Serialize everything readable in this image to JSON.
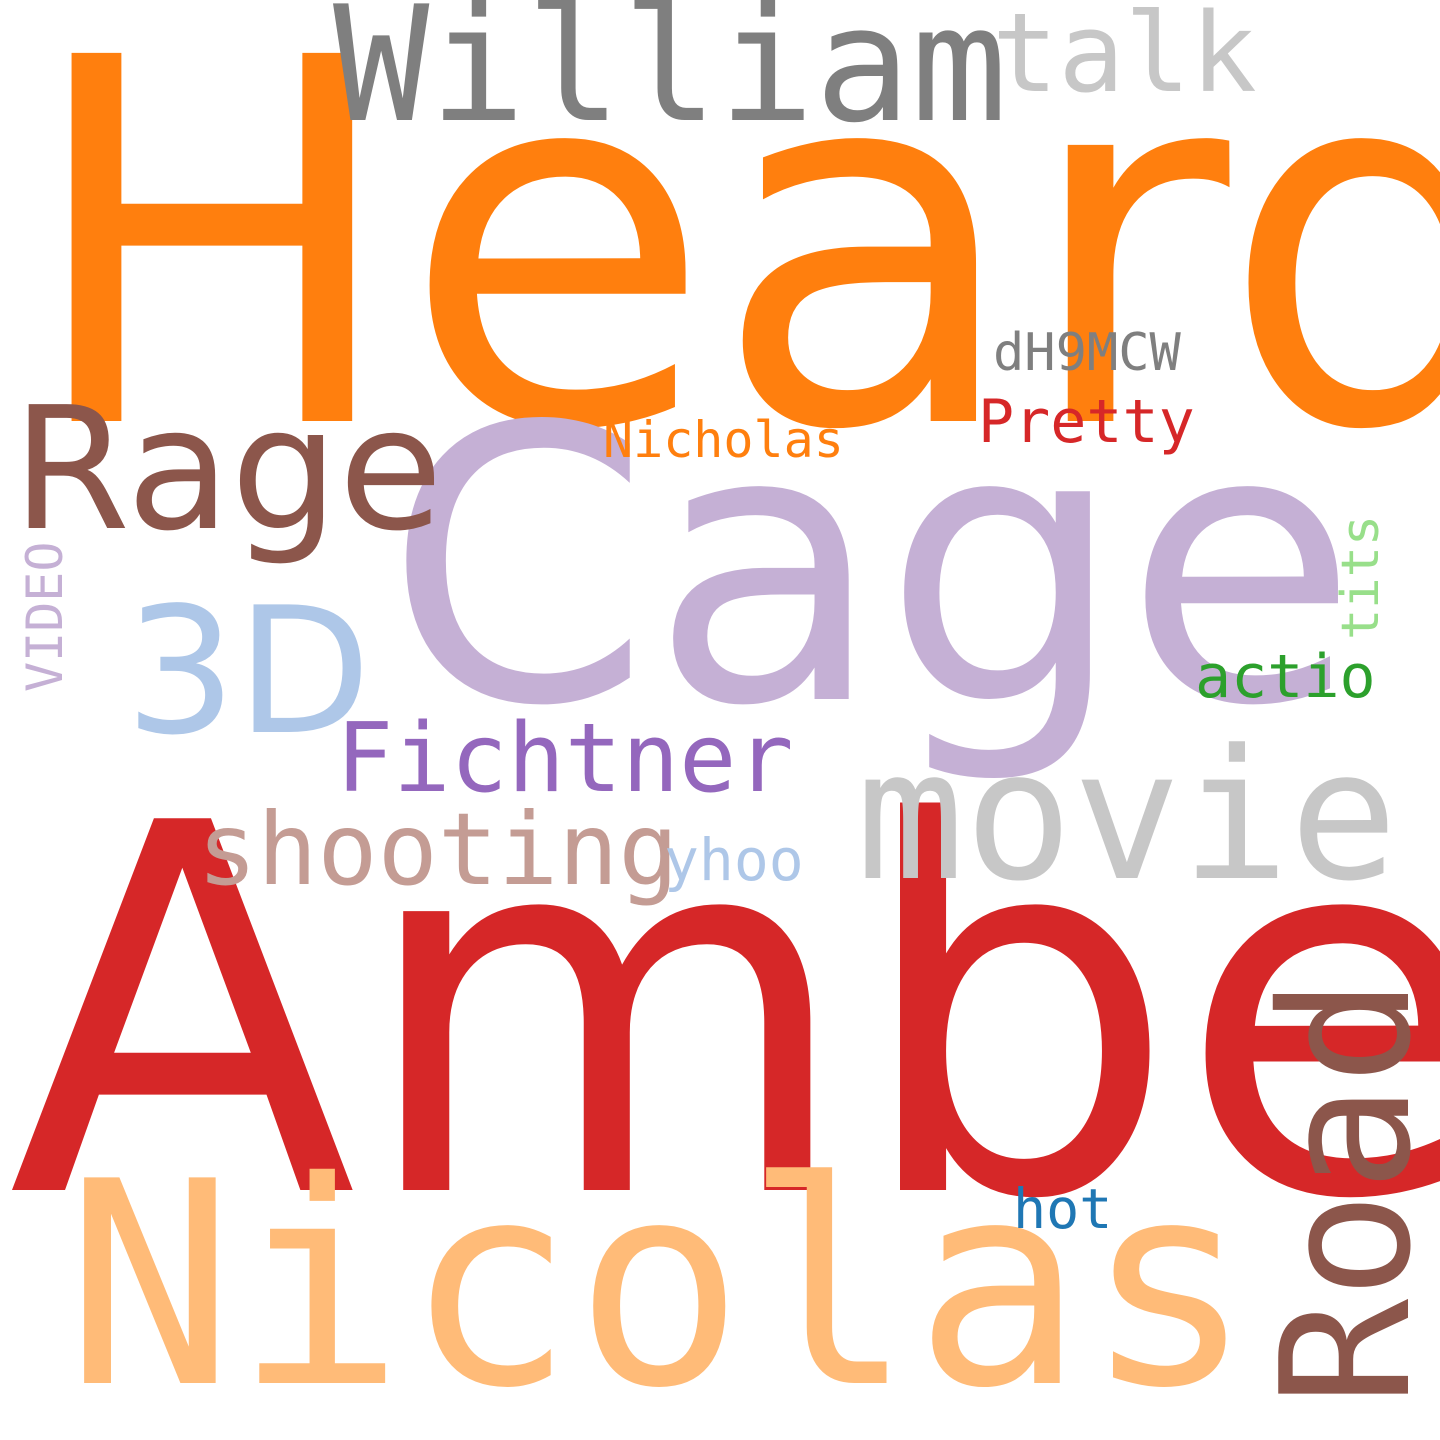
{
  "words": [
    {
      "id": "heard",
      "text": "Heard",
      "color": "#ff7f0e"
    },
    {
      "id": "amber",
      "text": "Amber",
      "color": "#d62728"
    },
    {
      "id": "cage",
      "text": "Cage",
      "color": "#c5b0d5"
    },
    {
      "id": "nicolas",
      "text": "Nicolas",
      "color": "#ffbb78"
    },
    {
      "id": "road",
      "text": "Road",
      "color": "#8c564b"
    },
    {
      "id": "william",
      "text": "William",
      "color": "#7f7f7f"
    },
    {
      "id": "movie",
      "text": "movie",
      "color": "#c7c7c7"
    },
    {
      "id": "rage",
      "text": "Rage",
      "color": "#8c564b"
    },
    {
      "id": "3d",
      "text": "3D",
      "color": "#aec7e8"
    },
    {
      "id": "fichtner",
      "text": "Fichtner",
      "color": "#9467bd"
    },
    {
      "id": "talk",
      "text": "talk",
      "color": "#c7c7c7"
    },
    {
      "id": "shooting",
      "text": "shooting",
      "color": "#c49c94"
    },
    {
      "id": "dh9mcw",
      "text": "dH9MCW",
      "color": "#7f7f7f"
    },
    {
      "id": "pretty",
      "text": "Pretty",
      "color": "#d62728"
    },
    {
      "id": "nicholas",
      "text": "Nicholas",
      "color": "#ff7f0e"
    },
    {
      "id": "actio",
      "text": "actio",
      "color": "#2ca02c"
    },
    {
      "id": "tits",
      "text": "tits",
      "color": "#98df8a"
    },
    {
      "id": "video",
      "text": "VIDEO",
      "color": "#c5b0d5"
    },
    {
      "id": "yhoo",
      "text": "yhoo",
      "color": "#aec7e8"
    },
    {
      "id": "hot",
      "text": "hot",
      "color": "#1f77b4"
    }
  ]
}
